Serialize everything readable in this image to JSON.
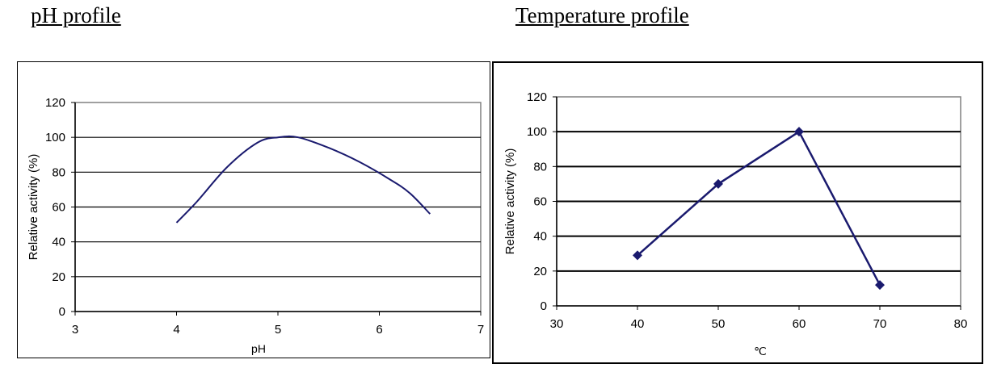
{
  "headings": {
    "ph": "pH profile",
    "temperature": "Temperature profile"
  },
  "colors": {
    "series": "#1a1a6e",
    "grid": "#000000",
    "plot_border": "#808080"
  },
  "chart_data": [
    {
      "type": "line",
      "title": "pH profile",
      "xlabel": "pH",
      "ylabel": "Relative activity (%)",
      "xlim": [
        3,
        7
      ],
      "ylim": [
        0,
        120
      ],
      "xticks": [
        3,
        4,
        5,
        6,
        7
      ],
      "yticks": [
        0,
        20,
        40,
        60,
        80,
        100,
        120
      ],
      "grid": "horizontal",
      "markers": false,
      "smooth": true,
      "x": [
        4.0,
        4.2,
        4.5,
        4.8,
        5.0,
        5.2,
        5.5,
        5.8,
        6.1,
        6.3,
        6.5
      ],
      "y": [
        51,
        63,
        83,
        97,
        100,
        100,
        94,
        86,
        76,
        68,
        56
      ]
    },
    {
      "type": "line",
      "title": "Temperature profile",
      "xlabel": "℃",
      "ylabel": "Relative activity (%)",
      "xlim": [
        30,
        80
      ],
      "ylim": [
        0,
        120
      ],
      "xticks": [
        30,
        40,
        50,
        60,
        70,
        80
      ],
      "yticks": [
        0,
        20,
        40,
        60,
        80,
        100,
        120
      ],
      "grid": "horizontal",
      "markers": true,
      "smooth": false,
      "x": [
        40,
        50,
        60,
        70
      ],
      "y": [
        29,
        70,
        100,
        12
      ]
    }
  ]
}
